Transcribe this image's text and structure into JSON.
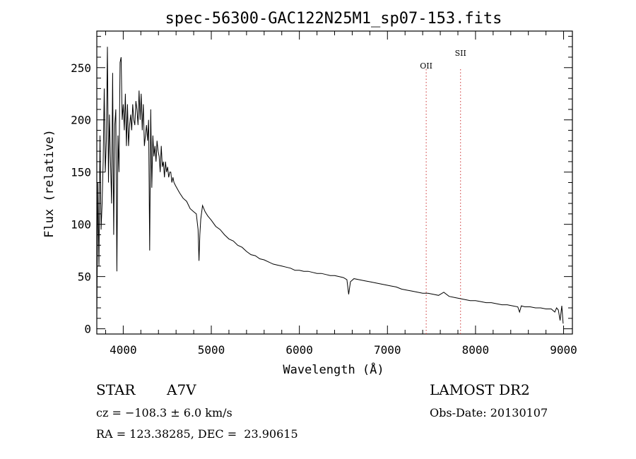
{
  "chart_data": {
    "type": "line",
    "title": "spec-56300-GAC122N25M1_sp07-153.fits",
    "xlabel": "Wavelength (Å)",
    "ylabel": "Flux (relative)",
    "xlim": [
      3700,
      9100
    ],
    "ylim": [
      -5,
      285
    ],
    "xticks": [
      "4000",
      "5000",
      "6000",
      "7000",
      "8000",
      "9000"
    ],
    "yticks": [
      "0",
      "50",
      "100",
      "150",
      "200",
      "250"
    ],
    "grid": false,
    "line_color": "#000000",
    "marker_color": "#cc3333",
    "lines": [
      {
        "label": "OII",
        "x": 7440
      },
      {
        "label": "SII",
        "x": 7830
      }
    ],
    "spectrum": {
      "x": [
        3700,
        3712,
        3724,
        3736,
        3748,
        3760,
        3772,
        3784,
        3796,
        3808,
        3820,
        3832,
        3844,
        3856,
        3868,
        3880,
        3892,
        3904,
        3916,
        3928,
        3940,
        3952,
        3964,
        3976,
        3988,
        4000,
        4012,
        4024,
        4036,
        4048,
        4060,
        4072,
        4084,
        4096,
        4108,
        4120,
        4132,
        4144,
        4156,
        4168,
        4180,
        4192,
        4204,
        4216,
        4228,
        4240,
        4252,
        4264,
        4276,
        4288,
        4300,
        4312,
        4324,
        4336,
        4348,
        4360,
        4372,
        4384,
        4396,
        4408,
        4420,
        4432,
        4444,
        4456,
        4468,
        4480,
        4492,
        4504,
        4516,
        4528,
        4540,
        4552,
        4564,
        4576,
        4588,
        4600,
        4640,
        4680,
        4720,
        4760,
        4800,
        4830,
        4850,
        4860,
        4870,
        4880,
        4900,
        4930,
        4960,
        5000,
        5050,
        5100,
        5150,
        5200,
        5250,
        5300,
        5350,
        5400,
        5450,
        5500,
        5550,
        5600,
        5650,
        5700,
        5750,
        5800,
        5850,
        5900,
        5950,
        6000,
        6050,
        6100,
        6150,
        6200,
        6250,
        6300,
        6350,
        6400,
        6450,
        6500,
        6540,
        6560,
        6580,
        6620,
        6680,
        6740,
        6800,
        6860,
        6920,
        6980,
        7040,
        7100,
        7160,
        7220,
        7280,
        7340,
        7400,
        7460,
        7520,
        7580,
        7640,
        7700,
        7760,
        7820,
        7880,
        7940,
        8000,
        8060,
        8120,
        8180,
        8240,
        8300,
        8360,
        8420,
        8480,
        8500,
        8520,
        8560,
        8620,
        8680,
        8740,
        8800,
        8860,
        8900,
        8920,
        8940,
        8960,
        8980,
        8995
      ],
      "y": [
        10,
        140,
        60,
        185,
        95,
        120,
        160,
        230,
        150,
        180,
        270,
        140,
        205,
        160,
        120,
        245,
        90,
        195,
        210,
        55,
        185,
        150,
        255,
        260,
        200,
        215,
        190,
        225,
        175,
        215,
        175,
        195,
        205,
        190,
        215,
        200,
        195,
        218,
        210,
        195,
        228,
        200,
        225,
        190,
        215,
        175,
        185,
        195,
        180,
        200,
        75,
        210,
        135,
        185,
        165,
        175,
        160,
        180,
        170,
        165,
        150,
        175,
        155,
        160,
        145,
        160,
        150,
        155,
        145,
        150,
        150,
        140,
        145,
        140,
        138,
        136,
        130,
        125,
        122,
        115,
        112,
        110,
        95,
        65,
        90,
        105,
        118,
        112,
        108,
        104,
        98,
        95,
        90,
        86,
        84,
        80,
        78,
        74,
        71,
        70,
        67,
        66,
        64,
        62,
        61,
        60,
        59,
        58,
        56,
        56,
        55,
        55,
        54,
        53,
        53,
        52,
        51,
        51,
        50,
        49,
        47,
        33,
        45,
        48,
        47,
        46,
        45,
        44,
        43,
        42,
        41,
        40,
        38,
        37,
        36,
        35,
        34,
        34,
        33,
        32,
        35,
        31,
        30,
        29,
        28,
        27,
        27,
        26,
        25,
        25,
        24,
        23,
        23,
        22,
        21,
        16,
        22,
        21,
        21,
        20,
        20,
        19,
        19,
        16,
        20,
        18,
        8,
        22,
        5
      ]
    }
  },
  "annotations": {
    "object_class": "STAR",
    "subclass": "A7V",
    "survey": "LAMOST DR2",
    "cz": "cz = −108.3 ± 6.0 km/s",
    "obs_date": "Obs-Date: 20130107",
    "coords": "RA = 123.38285, DEC =  23.90615"
  }
}
